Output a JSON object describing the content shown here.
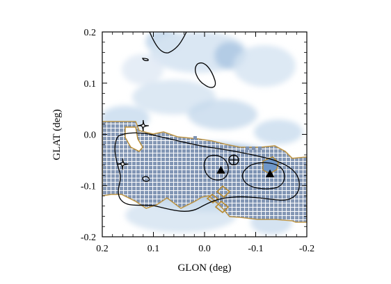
{
  "chart_data": {
    "type": "scatter",
    "title": "",
    "xlabel": "GLON (deg)",
    "ylabel": "GLAT (deg)",
    "xlim": [
      0.2,
      -0.2
    ],
    "ylim": [
      -0.2,
      0.2
    ],
    "x_reversed": true,
    "xticks": [
      {
        "value": 0.2,
        "label": "0.2"
      },
      {
        "value": 0.1,
        "label": "0.1"
      },
      {
        "value": 0.0,
        "label": "0.0"
      },
      {
        "value": -0.1,
        "label": "-0.1"
      },
      {
        "value": -0.2,
        "label": "-0.2"
      }
    ],
    "yticks": [
      {
        "value": 0.2,
        "label": "0.2"
      },
      {
        "value": 0.1,
        "label": "0.1"
      },
      {
        "value": 0.0,
        "label": "0.0"
      },
      {
        "value": -0.1,
        "label": "-0.1"
      },
      {
        "value": -0.2,
        "label": "-0.2"
      }
    ],
    "grid": false,
    "colors": {
      "emission": "#5a8fc4",
      "mask_fill": "#7f93b2",
      "mask_grid": "#ffffff",
      "mask_edge": "#b88a2e",
      "contour": "#000000",
      "marker": "#000000"
    },
    "markers": [
      {
        "shape": "four-point-star",
        "x": 0.12,
        "y": 0.017
      },
      {
        "shape": "four-point-star",
        "x": 0.16,
        "y": -0.058
      },
      {
        "shape": "filled-triangle",
        "x": -0.032,
        "y": -0.071
      },
      {
        "shape": "filled-triangle",
        "x": -0.128,
        "y": -0.078
      },
      {
        "shape": "circle-cross",
        "x": -0.057,
        "y": -0.05
      }
    ]
  }
}
